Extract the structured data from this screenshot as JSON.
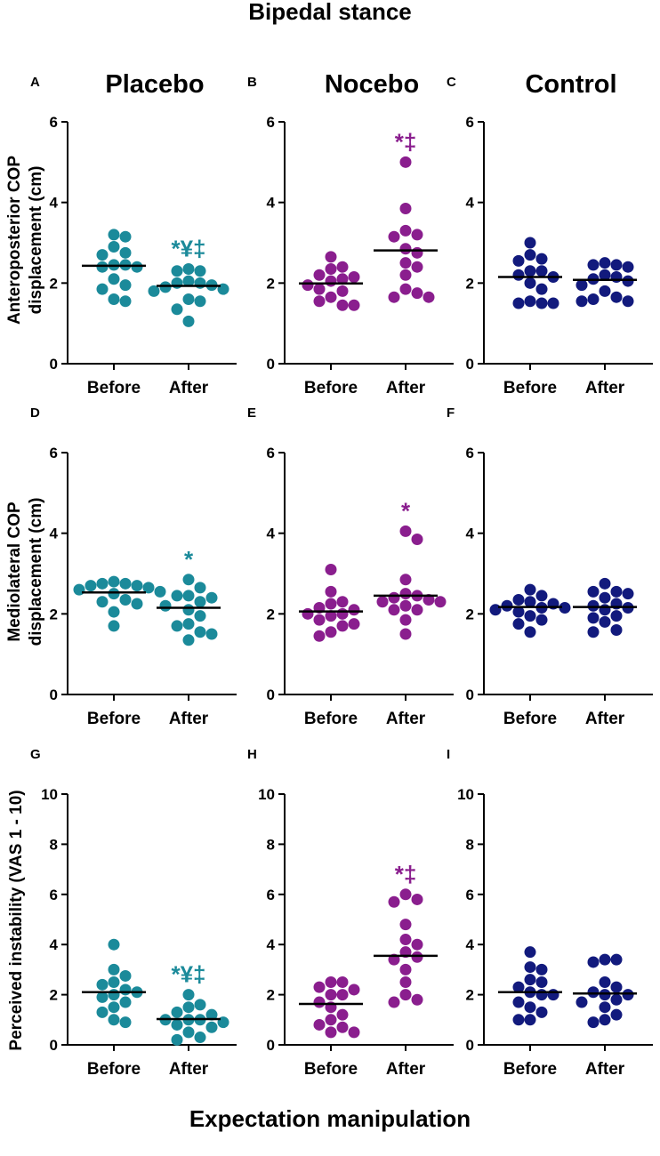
{
  "figure": {
    "title": "Bipedal stance",
    "xlabel": "Expectation manipulation",
    "groups": [
      {
        "label": "Placebo",
        "color": "#1b8a9a"
      },
      {
        "label": "Nocebo",
        "color": "#8a1e8e"
      },
      {
        "label": "Control",
        "color": "#121a7d"
      }
    ],
    "row_ylabels": [
      [
        "Anteroposterior COP",
        "displacement (cm)"
      ],
      [
        "Mediolateral COP",
        "displacement (cm)"
      ],
      [
        "Perceived instability (VAS 1 - 10)"
      ]
    ]
  },
  "chart_data": [
    {
      "panel": "A",
      "type": "scatter",
      "group": "Placebo",
      "categories": [
        "Before",
        "After"
      ],
      "ylabel": "Anteroposterior COP displacement (cm)",
      "ylim": [
        0,
        6
      ],
      "yticks": [
        0,
        2,
        4,
        6
      ],
      "series": [
        {
          "name": "Before",
          "values": [
            3.2,
            3.15,
            2.9,
            2.75,
            2.7,
            2.45,
            2.45,
            2.4,
            2.4,
            2.1,
            1.95,
            1.85,
            1.6,
            1.55
          ],
          "mean": 2.43
        },
        {
          "name": "After",
          "values": [
            2.35,
            2.3,
            2.3,
            2.05,
            2.0,
            2.0,
            1.95,
            1.9,
            1.85,
            1.8,
            1.6,
            1.55,
            1.35,
            1.05
          ],
          "mean": 1.93
        }
      ],
      "annotation": "*¥‡"
    },
    {
      "panel": "B",
      "type": "scatter",
      "group": "Nocebo",
      "categories": [
        "Before",
        "After"
      ],
      "ylabel": "Anteroposterior COP displacement (cm)",
      "ylim": [
        0,
        6
      ],
      "yticks": [
        0,
        2,
        4,
        6
      ],
      "series": [
        {
          "name": "Before",
          "values": [
            2.65,
            2.4,
            2.35,
            2.2,
            2.15,
            2.1,
            2.05,
            1.95,
            1.85,
            1.8,
            1.65,
            1.55,
            1.45,
            1.45
          ],
          "mean": 1.99
        },
        {
          "name": "After",
          "values": [
            5.0,
            3.85,
            3.3,
            3.2,
            3.15,
            2.85,
            2.75,
            2.5,
            2.4,
            2.2,
            1.85,
            1.75,
            1.65,
            1.65
          ],
          "mean": 2.81
        }
      ],
      "annotation": "*‡"
    },
    {
      "panel": "C",
      "type": "scatter",
      "group": "Control",
      "categories": [
        "Before",
        "After"
      ],
      "ylabel": "Anteroposterior COP displacement (cm)",
      "ylim": [
        0,
        6
      ],
      "yticks": [
        0,
        2,
        4,
        6
      ],
      "series": [
        {
          "name": "Before",
          "values": [
            3.0,
            2.7,
            2.6,
            2.55,
            2.3,
            2.3,
            2.2,
            2.15,
            2.0,
            1.85,
            1.55,
            1.5,
            1.5,
            1.5
          ],
          "mean": 2.15
        },
        {
          "name": "After",
          "values": [
            2.5,
            2.45,
            2.45,
            2.4,
            2.2,
            2.15,
            2.1,
            2.05,
            1.95,
            1.8,
            1.65,
            1.6,
            1.55,
            1.55
          ],
          "mean": 2.08
        }
      ],
      "annotation": ""
    },
    {
      "panel": "D",
      "type": "scatter",
      "group": "Placebo",
      "categories": [
        "Before",
        "After"
      ],
      "ylabel": "Mediolateral COP displacement (cm)",
      "ylim": [
        0,
        6
      ],
      "yticks": [
        0,
        2,
        4,
        6
      ],
      "series": [
        {
          "name": "Before",
          "values": [
            2.8,
            2.75,
            2.75,
            2.7,
            2.7,
            2.65,
            2.6,
            2.55,
            2.5,
            2.35,
            2.3,
            2.25,
            2.05,
            1.7
          ],
          "mean": 2.53
        },
        {
          "name": "After",
          "values": [
            2.85,
            2.65,
            2.45,
            2.45,
            2.4,
            2.3,
            2.2,
            2.1,
            1.95,
            1.75,
            1.7,
            1.55,
            1.5,
            1.35
          ],
          "mean": 2.15
        }
      ],
      "annotation": "*"
    },
    {
      "panel": "E",
      "type": "scatter",
      "group": "Nocebo",
      "categories": [
        "Before",
        "After"
      ],
      "ylabel": "Mediolateral COP displacement (cm)",
      "ylim": [
        0,
        6
      ],
      "yticks": [
        0,
        2,
        4,
        6
      ],
      "series": [
        {
          "name": "Before",
          "values": [
            3.1,
            2.55,
            2.3,
            2.25,
            2.15,
            2.1,
            2.0,
            2.0,
            1.95,
            1.85,
            1.75,
            1.7,
            1.55,
            1.45
          ],
          "mean": 2.06
        },
        {
          "name": "After",
          "values": [
            4.05,
            3.85,
            2.85,
            2.5,
            2.45,
            2.4,
            2.35,
            2.3,
            2.3,
            2.2,
            2.1,
            2.1,
            1.85,
            1.5
          ],
          "mean": 2.45
        }
      ],
      "annotation": "*"
    },
    {
      "panel": "F",
      "type": "scatter",
      "group": "Control",
      "categories": [
        "Before",
        "After"
      ],
      "ylabel": "Mediolateral COP displacement (cm)",
      "ylim": [
        0,
        6
      ],
      "yticks": [
        0,
        2,
        4,
        6
      ],
      "series": [
        {
          "name": "Before",
          "values": [
            2.6,
            2.45,
            2.35,
            2.3,
            2.25,
            2.2,
            2.15,
            2.15,
            2.1,
            2.05,
            1.95,
            1.85,
            1.75,
            1.55
          ],
          "mean": 2.17
        },
        {
          "name": "After",
          "values": [
            2.75,
            2.55,
            2.55,
            2.5,
            2.4,
            2.25,
            2.2,
            2.15,
            2.1,
            1.95,
            1.9,
            1.8,
            1.6,
            1.55
          ],
          "mean": 2.17
        }
      ],
      "annotation": ""
    },
    {
      "panel": "G",
      "type": "scatter",
      "group": "Placebo",
      "categories": [
        "Before",
        "After"
      ],
      "ylabel": "Perceived instability (VAS 1 - 10)",
      "ylim": [
        0,
        10
      ],
      "yticks": [
        0,
        2,
        4,
        6,
        8,
        10
      ],
      "series": [
        {
          "name": "Before",
          "values": [
            4.0,
            3.0,
            2.75,
            2.5,
            2.4,
            2.2,
            2.1,
            2.0,
            1.9,
            1.7,
            1.5,
            1.3,
            1.0,
            0.9
          ],
          "mean": 2.1
        },
        {
          "name": "After",
          "values": [
            2.0,
            1.6,
            1.5,
            1.3,
            1.2,
            1.0,
            1.0,
            1.0,
            0.9,
            0.8,
            0.7,
            0.5,
            0.3,
            0.2
          ],
          "mean": 1.03
        }
      ],
      "annotation": "*¥‡"
    },
    {
      "panel": "H",
      "type": "scatter",
      "group": "Nocebo",
      "categories": [
        "Before",
        "After"
      ],
      "ylabel": "Perceived instability (VAS 1 - 10)",
      "ylim": [
        0,
        10
      ],
      "yticks": [
        0,
        2,
        4,
        6,
        8,
        10
      ],
      "series": [
        {
          "name": "Before",
          "values": [
            2.5,
            2.5,
            2.3,
            2.2,
            2.0,
            2.0,
            1.7,
            1.5,
            1.2,
            1.0,
            0.8,
            0.7,
            0.5,
            0.5
          ],
          "mean": 1.63
        },
        {
          "name": "After",
          "values": [
            6.0,
            5.8,
            5.7,
            4.8,
            4.2,
            4.0,
            3.7,
            3.5,
            3.4,
            3.0,
            2.5,
            2.0,
            1.8,
            1.7
          ],
          "mean": 3.55
        }
      ],
      "annotation": "*‡"
    },
    {
      "panel": "I",
      "type": "scatter",
      "group": "Control",
      "categories": [
        "Before",
        "After"
      ],
      "ylabel": "Perceived instability (VAS 1 - 10)",
      "ylim": [
        0,
        10
      ],
      "yticks": [
        0,
        2,
        4,
        6,
        8,
        10
      ],
      "series": [
        {
          "name": "Before",
          "values": [
            3.7,
            3.1,
            3.0,
            2.6,
            2.5,
            2.3,
            2.1,
            2.0,
            2.0,
            1.7,
            1.5,
            1.3,
            1.0,
            1.0
          ],
          "mean": 2.1
        },
        {
          "name": "After",
          "values": [
            3.4,
            3.4,
            3.3,
            2.5,
            2.3,
            2.1,
            2.0,
            2.0,
            1.8,
            1.7,
            1.5,
            1.2,
            1.0,
            0.9
          ],
          "mean": 2.05
        }
      ],
      "annotation": ""
    }
  ]
}
